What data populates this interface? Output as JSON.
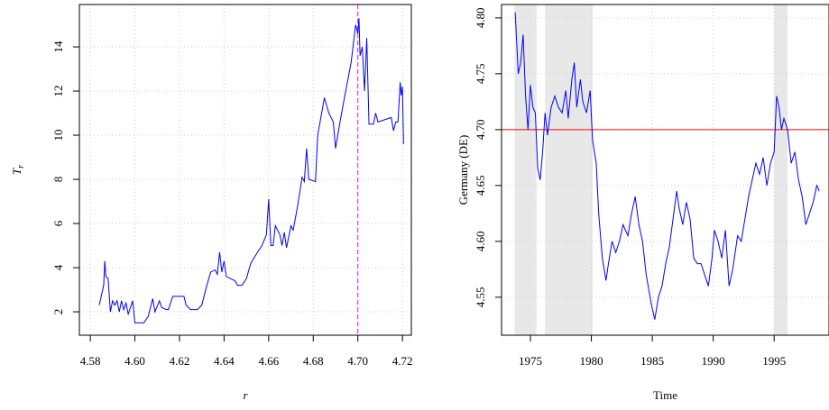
{
  "chart_data": [
    {
      "type": "line",
      "x_label": "r",
      "y_label": "T",
      "y_label_subscript": "r",
      "xlim": [
        4.5751,
        4.724
      ],
      "ylim": [
        0.94,
        15.92
      ],
      "xticks": [
        4.58,
        {
          "value": 4.6,
          "label": "4.60"
        },
        4.62,
        4.64,
        4.66,
        4.68,
        {
          "value": 4.7,
          "label": "4.70"
        },
        4.72
      ],
      "yticks": [
        2,
        4,
        6,
        8,
        10,
        12,
        14
      ],
      "grid": true,
      "vline": {
        "value": 4.7,
        "color": "#ff00ff"
      },
      "series": [
        {
          "color": "#0000ff",
          "x": [
            4.584,
            4.586,
            4.5865,
            4.587,
            4.588,
            4.589,
            4.59,
            4.591,
            4.592,
            4.593,
            4.594,
            4.595,
            4.596,
            4.597,
            4.599,
            4.6,
            4.602,
            4.604,
            4.606,
            4.608,
            4.609,
            4.611,
            4.612,
            4.614,
            4.615,
            4.617,
            4.62,
            4.622,
            4.623,
            4.625,
            4.628,
            4.63,
            4.632,
            4.634,
            4.636,
            4.637,
            4.638,
            4.639,
            4.64,
            4.641,
            4.643,
            4.645,
            4.646,
            4.648,
            4.65,
            4.652,
            4.655,
            4.657,
            4.659,
            4.66,
            4.661,
            4.662,
            4.663,
            4.665,
            4.666,
            4.667,
            4.668,
            4.67,
            4.671,
            4.673,
            4.675,
            4.676,
            4.677,
            4.678,
            4.681,
            4.682,
            4.685,
            4.687,
            4.689,
            4.69,
            4.692,
            4.694,
            4.697,
            4.699,
            4.7,
            4.7005,
            4.701,
            4.702,
            4.703,
            4.704,
            4.705,
            4.707,
            4.708,
            4.709,
            4.712,
            4.715,
            4.716,
            4.717,
            4.718,
            4.719,
            4.7195,
            4.72,
            4.7205
          ],
          "values": [
            2.3,
            3.2,
            4.3,
            3.6,
            3.5,
            2.0,
            2.5,
            2.3,
            2.5,
            2.0,
            2.5,
            2.1,
            2.4,
            1.9,
            2.5,
            1.5,
            1.5,
            1.5,
            1.8,
            2.6,
            2.0,
            2.5,
            2.2,
            2.1,
            2.1,
            2.7,
            2.7,
            2.7,
            2.3,
            2.1,
            2.1,
            2.3,
            3.1,
            3.8,
            3.9,
            3.7,
            4.7,
            3.8,
            4.3,
            3.6,
            3.5,
            3.4,
            3.2,
            3.2,
            3.5,
            4.2,
            4.7,
            5.0,
            5.5,
            7.1,
            5.0,
            5.0,
            5.9,
            5.5,
            5.0,
            5.6,
            4.9,
            5.9,
            5.7,
            6.8,
            8.1,
            7.9,
            9.4,
            8.0,
            7.9,
            10.0,
            11.7,
            11.0,
            10.6,
            9.4,
            10.6,
            11.7,
            13.3,
            15.0,
            14.6,
            15.3,
            13.6,
            14.0,
            12.0,
            14.4,
            10.5,
            10.5,
            11.0,
            10.6,
            10.7,
            10.8,
            10.2,
            10.6,
            10.6,
            12.4,
            11.8,
            12.2,
            9.6
          ]
        }
      ]
    },
    {
      "type": "line",
      "x_label": "Time",
      "y_label": "Germany (DE)",
      "xlim": [
        1972.63,
        1999.5
      ],
      "ylim": [
        4.516,
        4.812
      ],
      "xticks": [
        1975,
        1980,
        1985,
        1990,
        1995
      ],
      "yticks": [
        4.55,
        {
          "value": 4.6,
          "label": "4.60"
        },
        4.65,
        {
          "value": 4.7,
          "label": "4.70"
        },
        4.75,
        {
          "value": 4.8,
          "label": "4.80"
        }
      ],
      "grid": true,
      "hline": {
        "value": 4.7,
        "color": "#ff0000"
      },
      "shaded_regions": [
        [
          1973.7,
          1975.5
        ],
        [
          1976.2,
          1980.1
        ],
        [
          1995.0,
          1996.1
        ]
      ],
      "shade_color": "#e8e8e8",
      "series": [
        {
          "color": "#0000ff",
          "x": [
            1973.75,
            1974.0,
            1974.2,
            1974.4,
            1974.6,
            1974.8,
            1975.0,
            1975.2,
            1975.4,
            1975.6,
            1975.8,
            1976.0,
            1976.2,
            1976.4,
            1976.7,
            1977.0,
            1977.3,
            1977.6,
            1977.9,
            1978.1,
            1978.4,
            1978.6,
            1978.8,
            1979.1,
            1979.3,
            1979.6,
            1979.9,
            1980.1,
            1980.4,
            1980.6,
            1980.9,
            1981.2,
            1981.4,
            1981.7,
            1982.0,
            1982.3,
            1982.6,
            1983.0,
            1983.3,
            1983.6,
            1983.9,
            1984.2,
            1984.5,
            1984.9,
            1985.2,
            1985.5,
            1985.8,
            1986.1,
            1986.4,
            1986.7,
            1987.0,
            1987.2,
            1987.5,
            1987.8,
            1988.1,
            1988.4,
            1988.7,
            1989.0,
            1989.3,
            1989.6,
            1989.9,
            1990.1,
            1990.4,
            1990.7,
            1991.0,
            1991.3,
            1991.6,
            1992.0,
            1992.3,
            1992.6,
            1992.9,
            1993.2,
            1993.5,
            1993.8,
            1994.1,
            1994.4,
            1994.7,
            1995.0,
            1995.2,
            1995.4,
            1995.6,
            1995.8,
            1996.1,
            1996.4,
            1996.7,
            1997.0,
            1997.3,
            1997.6,
            1997.9,
            1998.2,
            1998.5,
            1998.7
          ],
          "values": [
            4.805,
            4.75,
            4.76,
            4.785,
            4.73,
            4.7,
            4.74,
            4.72,
            4.715,
            4.665,
            4.655,
            4.68,
            4.715,
            4.695,
            4.72,
            4.73,
            4.72,
            4.715,
            4.735,
            4.71,
            4.745,
            4.76,
            4.72,
            4.745,
            4.725,
            4.715,
            4.735,
            4.69,
            4.67,
            4.625,
            4.585,
            4.565,
            4.58,
            4.6,
            4.59,
            4.6,
            4.615,
            4.605,
            4.625,
            4.64,
            4.615,
            4.6,
            4.57,
            4.545,
            4.53,
            4.55,
            4.56,
            4.58,
            4.595,
            4.62,
            4.645,
            4.63,
            4.615,
            4.635,
            4.62,
            4.585,
            4.58,
            4.58,
            4.57,
            4.56,
            4.585,
            4.61,
            4.6,
            4.585,
            4.61,
            4.56,
            4.575,
            4.605,
            4.6,
            4.62,
            4.64,
            4.655,
            4.67,
            4.66,
            4.675,
            4.65,
            4.67,
            4.68,
            4.73,
            4.72,
            4.7,
            4.71,
            4.7,
            4.67,
            4.68,
            4.655,
            4.64,
            4.615,
            4.625,
            4.635,
            4.65,
            4.645
          ]
        }
      ]
    }
  ]
}
